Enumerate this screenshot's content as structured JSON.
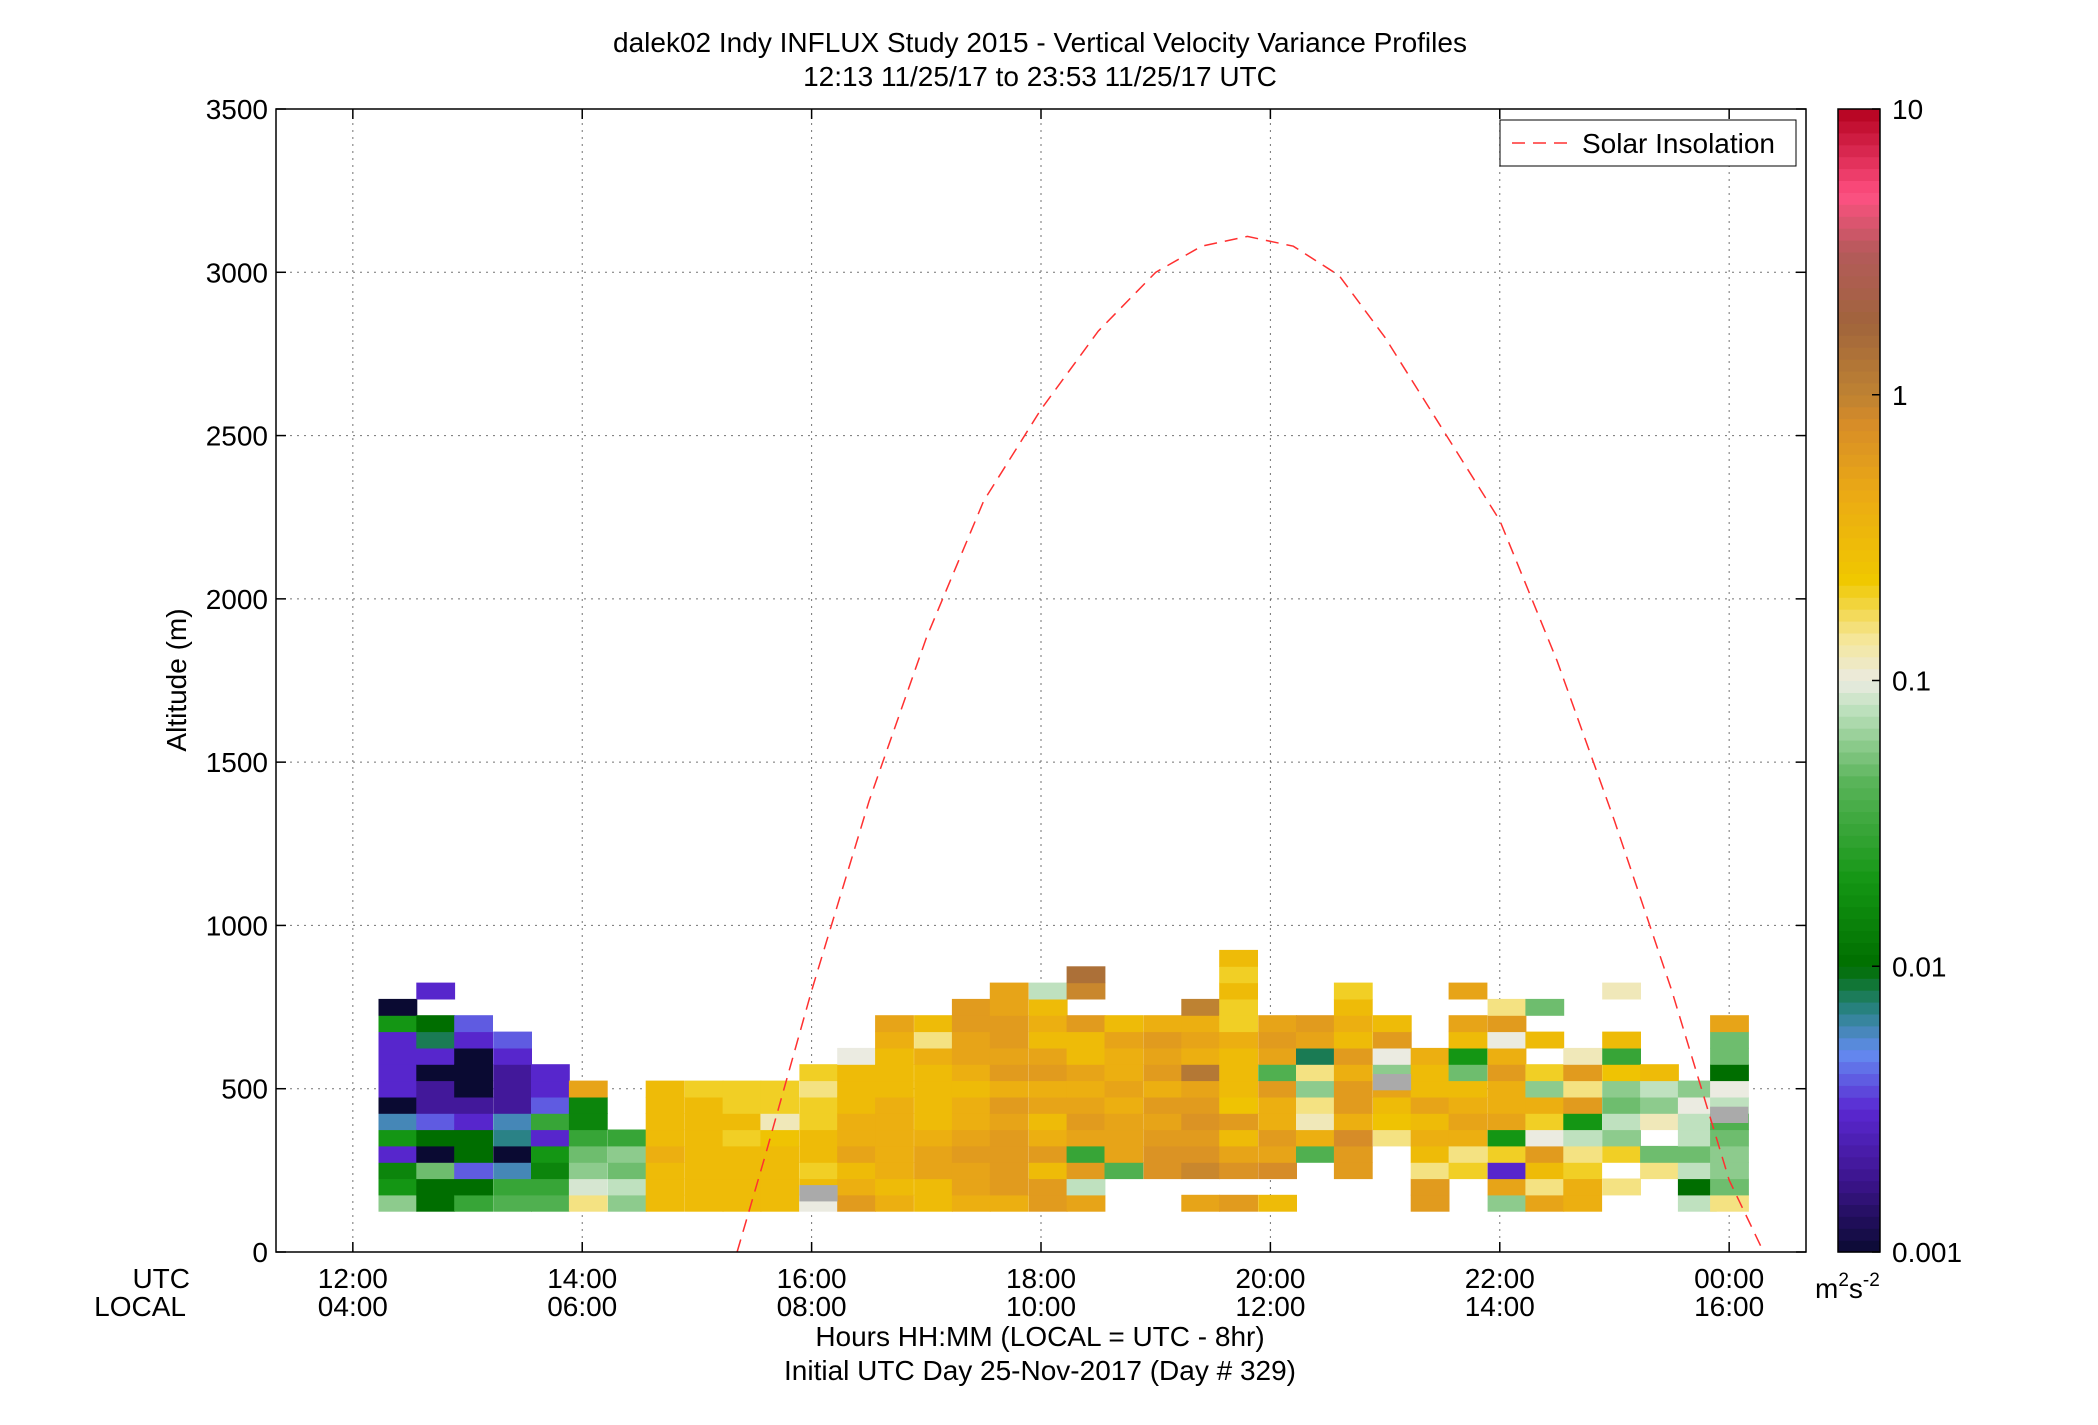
{
  "chart_data": {
    "type": "heatmap",
    "title": "dalek02 Indy INFLUX Study 2015 - Vertical Velocity Variance Profiles",
    "subtitle": "12:13 11/25/17 to 23:53 11/25/17  UTC",
    "ylabel": "Altitude (m)",
    "xlabel": "Hours HH:MM  (LOCAL = UTC - 8hr)",
    "xlabel2": "Initial UTC Day 25-Nov-2017 (Day # 329)",
    "xlim": [
      11.33,
      24.67
    ],
    "ylim": [
      0,
      3500
    ],
    "x_row_labels": {
      "utc": "UTC",
      "local": "LOCAL"
    },
    "x_ticks": [
      {
        "x": 12,
        "utc": "12:00",
        "local": "04:00"
      },
      {
        "x": 14,
        "utc": "14:00",
        "local": "06:00"
      },
      {
        "x": 16,
        "utc": "16:00",
        "local": "08:00"
      },
      {
        "x": 18,
        "utc": "18:00",
        "local": "10:00"
      },
      {
        "x": 20,
        "utc": "20:00",
        "local": "12:00"
      },
      {
        "x": 22,
        "utc": "22:00",
        "local": "14:00"
      },
      {
        "x": 24,
        "utc": "00:00",
        "local": "16:00"
      }
    ],
    "y_ticks": [
      {
        "v": 0,
        "label": "0"
      },
      {
        "v": 500,
        "label": "500"
      },
      {
        "v": 1000,
        "label": "1000"
      },
      {
        "v": 1500,
        "label": "1500"
      },
      {
        "v": 2000,
        "label": "2000"
      },
      {
        "v": 2500,
        "label": "2500"
      },
      {
        "v": 3000,
        "label": "3000"
      },
      {
        "v": 3500,
        "label": "3500"
      }
    ],
    "grid": true,
    "legend": {
      "position": "top-right",
      "entries": [
        {
          "name": "Solar Insolation",
          "color": "#ff0000",
          "style": "dashed"
        }
      ]
    },
    "colorbar": {
      "scale": "log",
      "min": 0.001,
      "max": 10,
      "ticks": [
        {
          "v": 0.001,
          "label": "0.001"
        },
        {
          "v": 0.01,
          "label": "0.01"
        },
        {
          "v": 0.1,
          "label": "0.1"
        },
        {
          "v": 1,
          "label": "1"
        },
        {
          "v": 10,
          "label": "10"
        }
      ],
      "units_base": "m",
      "units_exp1": "2",
      "units_mid": "s",
      "units_exp2": "-2"
    },
    "cell_dt_hours": 0.333,
    "cell_dz_m": 50,
    "columns": [
      {
        "t": 12.39,
        "z0": 150,
        "vals": [
          0.06,
          0.02,
          0.015,
          0.003,
          0.02,
          0.006,
          0.001,
          0.003,
          0.003,
          0.003,
          0.003,
          0.02,
          0.001
        ]
      },
      {
        "t": 12.72,
        "z0": 150,
        "vals": [
          0.01,
          0.01,
          0.05,
          0.001,
          0.01,
          0.004,
          0.002,
          0.002,
          0.001,
          0.003,
          0.008,
          0.01,
          null,
          0.003
        ]
      },
      {
        "t": 13.05,
        "z0": 150,
        "vals": [
          0.03,
          0.01,
          0.004,
          0.01,
          0.01,
          0.003,
          0.002,
          0.001,
          0.001,
          0.001,
          0.003,
          0.004
        ]
      },
      {
        "t": 13.39,
        "z0": 150,
        "vals": [
          0.04,
          0.03,
          0.006,
          0.001,
          0.007,
          0.006,
          0.002,
          0.002,
          0.002,
          0.003,
          0.004
        ]
      },
      {
        "t": 13.72,
        "z0": 150,
        "vals": [
          0.04,
          0.03,
          0.015,
          0.02,
          0.003,
          0.03,
          0.004,
          0.003,
          0.003
        ]
      },
      {
        "t": 14.05,
        "z0": 150,
        "vals": [
          0.15,
          0.09,
          0.06,
          0.05,
          0.03,
          0.015,
          0.015,
          0.5
        ]
      },
      {
        "t": 14.39,
        "z0": 150,
        "vals": [
          0.06,
          0.08,
          0.05,
          0.06,
          0.03
        ]
      },
      {
        "t": 14.72,
        "z0": 150,
        "vals": [
          0.3,
          0.3,
          0.3,
          0.4,
          0.3,
          0.3,
          0.3,
          0.3
        ]
      },
      {
        "t": 15.06,
        "z0": 150,
        "vals": [
          0.3,
          0.3,
          0.3,
          0.3,
          0.3,
          0.3,
          0.3,
          0.2
        ]
      },
      {
        "t": 15.39,
        "z0": 150,
        "vals": [
          0.3,
          0.3,
          0.3,
          0.3,
          0.2,
          0.3,
          0.2,
          0.2
        ]
      },
      {
        "t": 15.72,
        "z0": 150,
        "vals": [
          0.3,
          0.3,
          0.3,
          0.3,
          0.25,
          0.12,
          0.2,
          0.2
        ]
      },
      {
        "t": 16.06,
        "z0": 150,
        "vals": [
          0.1,
          0.3,
          0.2,
          0.3,
          0.3,
          0.2,
          0.2,
          0.15,
          0.2
        ]
      },
      {
        "t": 16.39,
        "z0": 150,
        "vals": [
          0.6,
          0.4,
          0.3,
          0.5,
          0.4,
          0.4,
          0.3,
          0.3,
          0.3,
          0.1
        ]
      },
      {
        "t": 16.72,
        "z0": 150,
        "vals": [
          0.4,
          0.3,
          0.4,
          0.4,
          0.4,
          0.4,
          0.4,
          0.3,
          0.3,
          0.3,
          0.4,
          0.5
        ]
      },
      {
        "t": 17.06,
        "z0": 150,
        "vals": [
          0.3,
          0.3,
          0.5,
          0.5,
          0.4,
          0.3,
          0.3,
          0.3,
          0.3,
          0.4,
          0.15,
          0.3
        ]
      },
      {
        "t": 17.39,
        "z0": 150,
        "vals": [
          0.4,
          0.5,
          0.5,
          0.6,
          0.5,
          0.4,
          0.4,
          0.3,
          0.4,
          0.5,
          0.5,
          0.6,
          0.6
        ]
      },
      {
        "t": 17.72,
        "z0": 150,
        "vals": [
          0.4,
          0.6,
          0.6,
          0.6,
          0.6,
          0.5,
          0.6,
          0.4,
          0.6,
          0.5,
          0.6,
          0.6,
          0.5,
          0.5
        ]
      },
      {
        "t": 18.06,
        "z0": 150,
        "vals": [
          0.6,
          0.6,
          0.3,
          0.6,
          0.4,
          0.3,
          0.5,
          0.4,
          0.6,
          0.5,
          0.3,
          0.4,
          0.3,
          0.08
        ]
      },
      {
        "t": 18.39,
        "z0": 150,
        "vals": [
          0.5,
          0.08,
          0.6,
          0.03,
          0.5,
          0.6,
          0.5,
          0.4,
          0.5,
          0.3,
          0.3,
          0.6,
          null,
          0.9,
          1.4
        ]
      },
      {
        "t": 18.72,
        "z0": 250,
        "vals": [
          0.04,
          0.5,
          0.5,
          0.5,
          0.4,
          0.5,
          0.4,
          0.4,
          0.5,
          0.3
        ]
      },
      {
        "t": 19.06,
        "z0": 250,
        "vals": [
          0.7,
          0.7,
          0.6,
          0.5,
          0.6,
          0.4,
          0.6,
          0.5,
          0.6,
          0.4
        ]
      },
      {
        "t": 19.39,
        "z0": 150,
        "vals": [
          0.5,
          null,
          0.9,
          0.7,
          0.6,
          0.7,
          0.6,
          0.5,
          1.2,
          0.4,
          0.5,
          0.4,
          1.0
        ]
      },
      {
        "t": 19.72,
        "z0": 150,
        "vals": [
          0.6,
          null,
          0.7,
          0.5,
          0.3,
          0.6,
          0.25,
          0.3,
          0.3,
          0.3,
          0.4,
          0.2,
          0.2,
          0.3,
          0.2,
          0.3
        ]
      },
      {
        "t": 20.06,
        "z0": 150,
        "vals": [
          0.3,
          null,
          0.8,
          0.5,
          0.6,
          0.4,
          0.4,
          0.6,
          0.04,
          0.5,
          0.6,
          0.5
        ]
      },
      {
        "t": 20.39,
        "z0": 300,
        "vals": [
          0.04,
          0.4,
          0.12,
          0.15,
          0.06,
          0.15,
          0.008,
          0.5,
          0.6
        ]
      },
      {
        "t": 20.72,
        "z0": 250,
        "vals": [
          0.6,
          0.6,
          0.8,
          0.4,
          0.6,
          0.6,
          0.4,
          0.6,
          0.3,
          0.4,
          0.3,
          0.2
        ]
      },
      {
        "t": 21.06,
        "z0": 350,
        "vals": [
          0.15,
          0.25,
          0.3,
          0.5,
          0.06,
          0.1,
          0.6,
          0.3
        ]
      },
      {
        "t": 21.39,
        "z0": 150,
        "vals": [
          0.6,
          0.6,
          0.15,
          0.3,
          0.4,
          0.3,
          0.5,
          0.3,
          0.3,
          0.4
        ]
      },
      {
        "t": 21.72,
        "z0": 250,
        "vals": [
          0.2,
          0.15,
          0.4,
          0.5,
          0.4,
          0.3,
          0.05,
          0.02,
          0.3,
          0.5,
          null,
          0.5
        ]
      },
      {
        "t": 22.06,
        "z0": 150,
        "vals": [
          0.06,
          0.5,
          0.003,
          0.2,
          0.02,
          0.5,
          0.4,
          0.4,
          0.6,
          0.4,
          0.1,
          0.6,
          0.15
        ]
      },
      {
        "t": 22.39,
        "z0": 150,
        "vals": [
          0.5,
          0.15,
          0.3,
          0.6,
          0.1,
          0.2,
          0.4,
          0.06,
          0.2,
          null,
          0.3,
          null,
          0.05
        ]
      },
      {
        "t": 22.72,
        "z0": 150,
        "vals": [
          0.4,
          0.4,
          0.2,
          0.15,
          0.08,
          0.02,
          0.6,
          0.15,
          0.6,
          0.12
        ]
      },
      {
        "t": 23.06,
        "z0": 200,
        "vals": [
          0.15,
          null,
          0.2,
          0.06,
          0.08,
          0.05,
          0.06,
          0.25,
          0.03,
          0.3,
          null,
          null,
          0.12
        ]
      },
      {
        "t": 23.39,
        "z0": 250,
        "vals": [
          0.15,
          0.05,
          null,
          0.12,
          0.06,
          0.08,
          0.3
        ]
      },
      {
        "t": 23.72,
        "z0": 150,
        "vals": [
          0.08,
          0.01,
          0.08,
          0.05,
          0.08,
          0.08,
          0.1,
          0.06
        ]
      },
      {
        "t": 24.0,
        "z0": 150,
        "vals": [
          0.15,
          0.05,
          0.06,
          0.06,
          0.05,
          0.04,
          0.08,
          0.1,
          0.01,
          0.05,
          0.05,
          0.5
        ]
      }
    ],
    "solar_curve": [
      {
        "x": 15.35,
        "y": 0
      },
      {
        "x": 15.6,
        "y": 300
      },
      {
        "x": 16.0,
        "y": 800
      },
      {
        "x": 16.5,
        "y": 1380
      },
      {
        "x": 17.0,
        "y": 1880
      },
      {
        "x": 17.5,
        "y": 2300
      },
      {
        "x": 18.0,
        "y": 2580
      },
      {
        "x": 18.5,
        "y": 2820
      },
      {
        "x": 19.0,
        "y": 3000
      },
      {
        "x": 19.4,
        "y": 3080
      },
      {
        "x": 19.8,
        "y": 3110
      },
      {
        "x": 20.2,
        "y": 3080
      },
      {
        "x": 20.6,
        "y": 2990
      },
      {
        "x": 21.0,
        "y": 2800
      },
      {
        "x": 21.5,
        "y": 2520
      },
      {
        "x": 22.0,
        "y": 2240
      },
      {
        "x": 22.5,
        "y": 1810
      },
      {
        "x": 23.0,
        "y": 1320
      },
      {
        "x": 23.5,
        "y": 800
      },
      {
        "x": 24.0,
        "y": 220
      },
      {
        "x": 24.3,
        "y": 0
      }
    ],
    "gray_cells": [
      {
        "t": 16.06,
        "z": 180
      },
      {
        "t": 21.06,
        "z": 520
      },
      {
        "t": 24.0,
        "z": 420
      }
    ]
  }
}
